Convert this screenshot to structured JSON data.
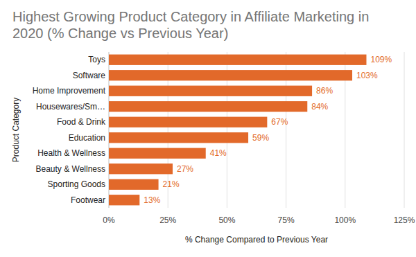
{
  "chart_data": {
    "type": "bar",
    "orientation": "horizontal",
    "title": "Highest Growing Product Category in Affiliate Marketing in 2020 (% Change vs Previous Year)",
    "x_label": "% Change Compared to Previous Year",
    "y_label": "Product Category",
    "categories": [
      "Toys",
      "Software",
      "Home Improvement",
      "Housewares/Sm…",
      "Food & Drink",
      "Education",
      "Health & Wellness",
      "Beauty & Wellness",
      "Sporting Goods",
      "Footwear"
    ],
    "values": [
      109,
      103,
      86,
      84,
      67,
      59,
      41,
      27,
      21,
      13
    ],
    "value_labels": [
      "109%",
      "103%",
      "86%",
      "84%",
      "67%",
      "59%",
      "41%",
      "27%",
      "21%",
      "13%"
    ],
    "color": "#e2692a",
    "xlim": [
      0,
      125
    ],
    "xticks": [
      {
        "value": 0,
        "label": "0%"
      },
      {
        "value": 25,
        "label": "25%"
      },
      {
        "value": 50,
        "label": "50%"
      },
      {
        "value": 75,
        "label": "75%"
      },
      {
        "value": 100,
        "label": "100%"
      },
      {
        "value": 125,
        "label": "125%"
      }
    ],
    "grid": true,
    "data_labels": true
  }
}
